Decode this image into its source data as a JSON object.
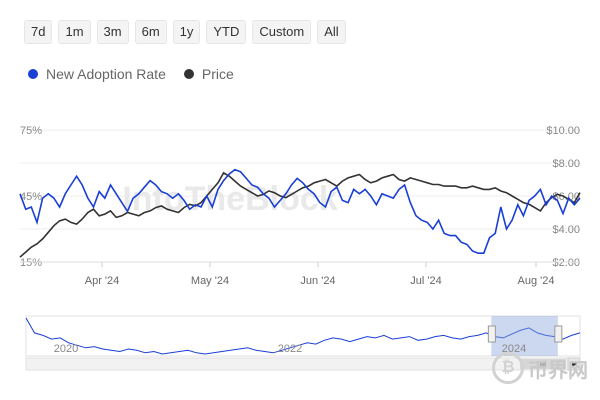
{
  "range_buttons": [
    "7d",
    "1m",
    "3m",
    "6m",
    "1y",
    "YTD",
    "Custom",
    "All"
  ],
  "legend": [
    {
      "label": "New Adoption Rate",
      "color": "#1a3fd6"
    },
    {
      "label": "Price",
      "color": "#333333"
    }
  ],
  "watermark": {
    "brand": "IntoTheBlock",
    "logo_text": "币界网",
    "coin_glyph": "₿"
  },
  "chart_data": {
    "type": "line",
    "title": "",
    "x_tick_labels": [
      "Apr '24",
      "May '24",
      "Jun '24",
      "Jul '24",
      "Aug '24"
    ],
    "left_axis": {
      "ticks": [
        "75%",
        "45%",
        "15%"
      ],
      "range": [
        15,
        75
      ],
      "unit": "%"
    },
    "right_axis": {
      "ticks": [
        "$10.00",
        "$8.00",
        "$6.00",
        "$4.00",
        "$2.00"
      ],
      "range": [
        2,
        10
      ],
      "unit": "$"
    },
    "grid": true,
    "legend_position": "top-left",
    "series": [
      {
        "name": "New Adoption Rate",
        "axis": "left",
        "color": "#1a3fd6",
        "values": [
          46,
          39,
          40,
          33,
          44,
          46,
          44,
          40,
          46,
          50,
          54,
          50,
          44,
          40,
          47,
          44,
          50,
          46,
          42,
          38,
          44,
          46,
          49,
          52,
          50,
          47,
          46,
          44,
          46,
          43,
          39,
          41,
          40,
          45,
          40,
          48,
          52,
          55,
          57,
          56,
          53,
          50,
          49,
          46,
          44,
          40,
          43,
          46,
          50,
          53,
          51,
          48,
          46,
          42,
          40,
          47,
          49,
          43,
          42,
          48,
          46,
          48,
          45,
          41,
          46,
          45,
          44,
          48,
          50,
          42,
          36,
          34,
          33,
          30,
          34,
          28,
          27,
          27,
          24,
          23,
          20,
          19,
          19,
          26,
          28,
          40,
          30,
          34,
          41,
          36,
          43,
          45,
          48,
          41,
          45,
          43,
          37,
          44,
          41,
          44
        ]
      },
      {
        "name": "Price",
        "axis": "right",
        "color": "#333333",
        "values": [
          2.3,
          2.6,
          2.9,
          3.1,
          3.4,
          3.8,
          4.2,
          4.5,
          4.6,
          4.4,
          4.3,
          4.6,
          5.0,
          5.2,
          4.8,
          4.9,
          5.1,
          4.7,
          4.8,
          5.0,
          4.9,
          4.8,
          5.0,
          5.1,
          5.3,
          5.4,
          5.2,
          5.1,
          5.0,
          5.3,
          5.5,
          5.4,
          5.6,
          6.0,
          6.4,
          6.8,
          7.4,
          7.2,
          6.9,
          6.6,
          6.4,
          6.2,
          6.0,
          6.1,
          6.3,
          6.2,
          6.0,
          5.9,
          6.1,
          6.3,
          6.5,
          6.6,
          6.8,
          6.9,
          7.0,
          6.8,
          6.6,
          6.9,
          7.1,
          7.2,
          7.3,
          7.0,
          6.8,
          6.9,
          7.1,
          7.2,
          7.3,
          7.0,
          6.9,
          7.1,
          7.0,
          6.9,
          6.8,
          6.7,
          6.7,
          6.6,
          6.6,
          6.6,
          6.5,
          6.5,
          6.6,
          6.5,
          6.4,
          6.4,
          6.5,
          6.3,
          6.2,
          6.0,
          5.8,
          5.6,
          5.5,
          5.3,
          5.1,
          5.6,
          5.9,
          6.1,
          6.0,
          5.8,
          5.6,
          6.2
        ]
      }
    ]
  },
  "navigator": {
    "x_labels": [
      "2020",
      "2022",
      "2024"
    ],
    "values": [
      50,
      38,
      36,
      33,
      34,
      30,
      28,
      26,
      27,
      25,
      24,
      23,
      25,
      24,
      22,
      23,
      21,
      22,
      23,
      24,
      22,
      21,
      22,
      23,
      24,
      25,
      26,
      24,
      23,
      22,
      24,
      26,
      28,
      30,
      29,
      32,
      34,
      33,
      31,
      33,
      35,
      34,
      36,
      33,
      34,
      35,
      32,
      33,
      35,
      36,
      34,
      33,
      35,
      36,
      38,
      35,
      34,
      37,
      40,
      42,
      38,
      36,
      35,
      33,
      36,
      38
    ],
    "selection": {
      "start": 0.84,
      "end": 0.96
    }
  }
}
